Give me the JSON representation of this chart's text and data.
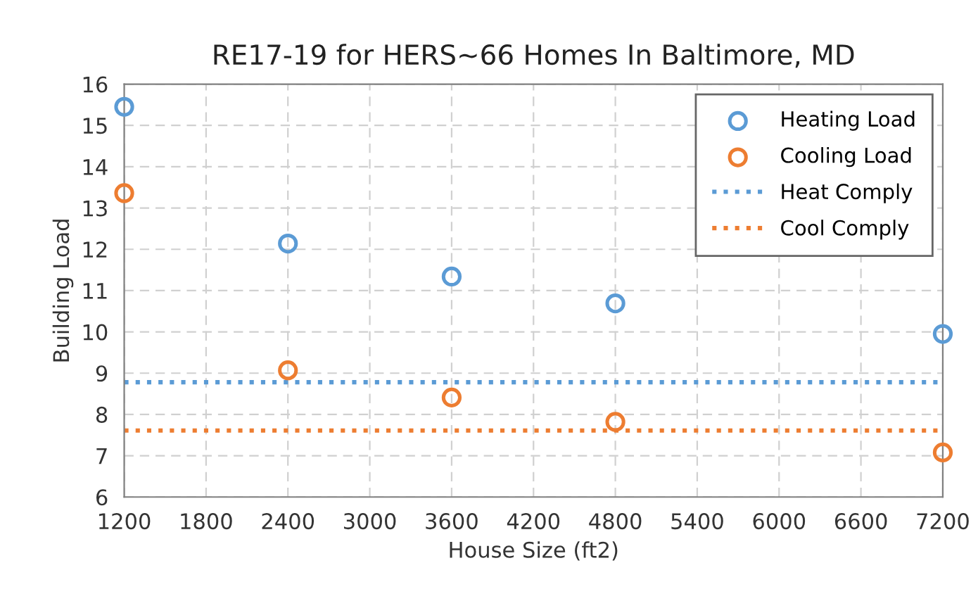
{
  "chart_data": {
    "type": "scatter",
    "title": "RE17-19 for HERS~66 Homes In Baltimore, MD",
    "xlabel": "House Size (ft2)",
    "ylabel": "Building Load",
    "x": [
      1200,
      2400,
      3600,
      4800,
      7200
    ],
    "series": [
      {
        "name": "Heating Load",
        "color": "#5b9bd5",
        "values": [
          15.45,
          12.14,
          11.34,
          10.69,
          9.95
        ]
      },
      {
        "name": "Cooling Load",
        "color": "#ed7d31",
        "values": [
          13.36,
          9.07,
          8.41,
          7.82,
          7.08
        ]
      }
    ],
    "ref_lines": [
      {
        "axis": "y",
        "value": 8.78,
        "label": "Heat Comply",
        "color": "#5b9bd5",
        "line_style": "dotted"
      },
      {
        "axis": "y",
        "value": 7.61,
        "label": "Cool Comply",
        "color": "#ed7d31",
        "line_style": "dotted"
      }
    ],
    "xlim": [
      1200,
      7200
    ],
    "xticks": [
      1200,
      1800,
      2400,
      3000,
      3600,
      4200,
      4800,
      5400,
      6000,
      6600,
      7200
    ],
    "ylim": [
      6,
      16
    ],
    "yticks": [
      6,
      7,
      8,
      9,
      10,
      11,
      12,
      13,
      14,
      15,
      16
    ],
    "grid": true,
    "legend": "top right",
    "marker": "circle"
  }
}
